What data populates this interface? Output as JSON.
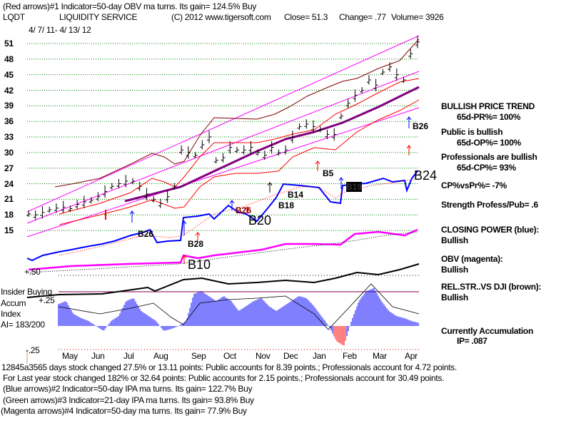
{
  "header": {
    "line1": "(Red arrows)#1 Indicator=50-day OBV ma turns. Its gain= 124.5% Buy",
    "ticker": "LQDT",
    "company": "LIQUIDITY SERVICE",
    "copyright": "(C) 2012 www.tigersoft.com",
    "close": "Close=  51.3",
    "change": "Change= .77",
    "volume": "Volume= 3926",
    "date_range": "4/ 7/ 11- 4/ 13/ 12"
  },
  "right_panel": {
    "trend_title": "BULLISH PRICE TREND",
    "pr": "65d-PR%= 100%",
    "public": "Public is bullish",
    "op": "65d-OP%= 100%",
    "professionals": "Professionals are bullish",
    "cp": "65d-CP%= 93%",
    "cpvspr": "CP%vsPr%= -7%",
    "strength": "Strength Profess/Pub= .6",
    "closing_power": "CLOSING POWER (blue):",
    "closing_power_status": "Bullish",
    "obv": "OBV (magenta):",
    "obv_status": "Bullish",
    "relstr": "REL.STR..VS DJI (brown):",
    "relstr_status": "Bullish",
    "accum": "Currently Accumulation",
    "ip": "IP=  .087"
  },
  "left_panel": {
    "insider": "Insider Buying",
    "accum": "Accum",
    "index": "Index",
    "ai": "AI= 183/200"
  },
  "footer": {
    "line1": "12845a3565 days stock changed  27.5% or  13.11 points:  Public accounts for  8.39 points.;  Professionals account for  4.72 points.",
    "line2": "For Last year stock changed  182% or  32.64 points:  Public accounts for  2.15 points.;  Professionals account for  30.49 points.",
    "line3": "(Blue arrows)#2 Indicator=50-day IPA ma turns. Its gain= 122.7% Buy",
    "line4": "(Green arrows)#3 Indicator=21-day IPA ma turns. Its gain= 93.8% Buy",
    "line5": "(Magenta arrows)#4 Indicator=50-day ma turns. Its gain= 77.9% Buy"
  },
  "signals": {
    "b26a": "B26",
    "b28": "B28",
    "b10": "B10",
    "b20": "B20",
    "b26b": "B26",
    "b18": "B18",
    "b14": "B14",
    "b5": "B5",
    "b19": "B19",
    "b24": "B24",
    "b26c": "B26"
  },
  "colors": {
    "price": "#000000",
    "closing_power": "#0000ff",
    "obv": "#ff00ff",
    "ma": "#800080",
    "channel": "#ff00ff",
    "band_upper": "#800000",
    "band_red": "#ff0000",
    "accum_pos": "#0000ff",
    "accum_neg": "#ff0000",
    "grid": "#008000"
  },
  "chart_data": {
    "type": "line",
    "title": "LQDT LIQUIDITY SERVICE",
    "xlabel": "",
    "ylabel": "Price",
    "ylim": [
      15,
      51
    ],
    "y_ticks": [
      "51",
      "48",
      "45",
      "42",
      "39",
      "36",
      "33",
      "30",
      "27",
      "24",
      "21",
      "18",
      "15"
    ],
    "x_ticks": [
      "May",
      "Jun",
      "Jul",
      "Aug",
      "Sep",
      "Oct",
      "Nov",
      "Dec",
      "Jan",
      "Feb",
      "Mar",
      "Apr"
    ],
    "price": {
      "name": "Weekly close",
      "values": [
        18.2,
        18.0,
        18.5,
        19.0,
        19.3,
        19.5,
        19.2,
        20.0,
        20.5,
        20.8,
        21.5,
        22.5,
        23.5,
        24.0,
        24.5,
        24.5,
        23.5,
        22.0,
        21.0,
        20.2,
        21.5,
        23.5,
        30.5,
        30.0,
        29.5,
        31.5,
        33.0,
        28.5,
        29.0,
        31.0,
        30.5,
        30.5,
        31.0,
        30.0,
        29.5,
        31.0,
        30.0,
        30.5,
        33.0,
        35.0,
        35.5,
        35.0,
        34.5,
        33.5,
        33.5,
        37.0,
        39.5,
        41.0,
        42.0,
        44.0,
        43.0,
        45.5,
        46.5,
        45.0,
        44.0,
        49.0,
        51.3
      ]
    },
    "accum_index": {
      "name": "Accumulation Index",
      "ylim": [
        -0.25,
        0.5
      ],
      "y_ticks": [
        "+.50",
        "+.25",
        "-.25"
      ],
      "values": [
        0.22,
        0.25,
        0.12,
        0.08,
        0.05,
        0.0,
        -0.05,
        0.05,
        0.1,
        0.25,
        0.28,
        0.15,
        0.1,
        0.05,
        -0.05,
        -0.03,
        0.0,
        0.05,
        0.32,
        0.35,
        0.3,
        0.25,
        0.3,
        0.25,
        0.15,
        0.2,
        0.25,
        0.28,
        0.2,
        0.15,
        0.2,
        0.25,
        0.3,
        0.28,
        0.2,
        0.1,
        0.0,
        -0.15,
        -0.2,
        0.05,
        0.25,
        0.35,
        0.38,
        0.25,
        0.15,
        0.1,
        0.08,
        0.05,
        0.03
      ]
    }
  }
}
